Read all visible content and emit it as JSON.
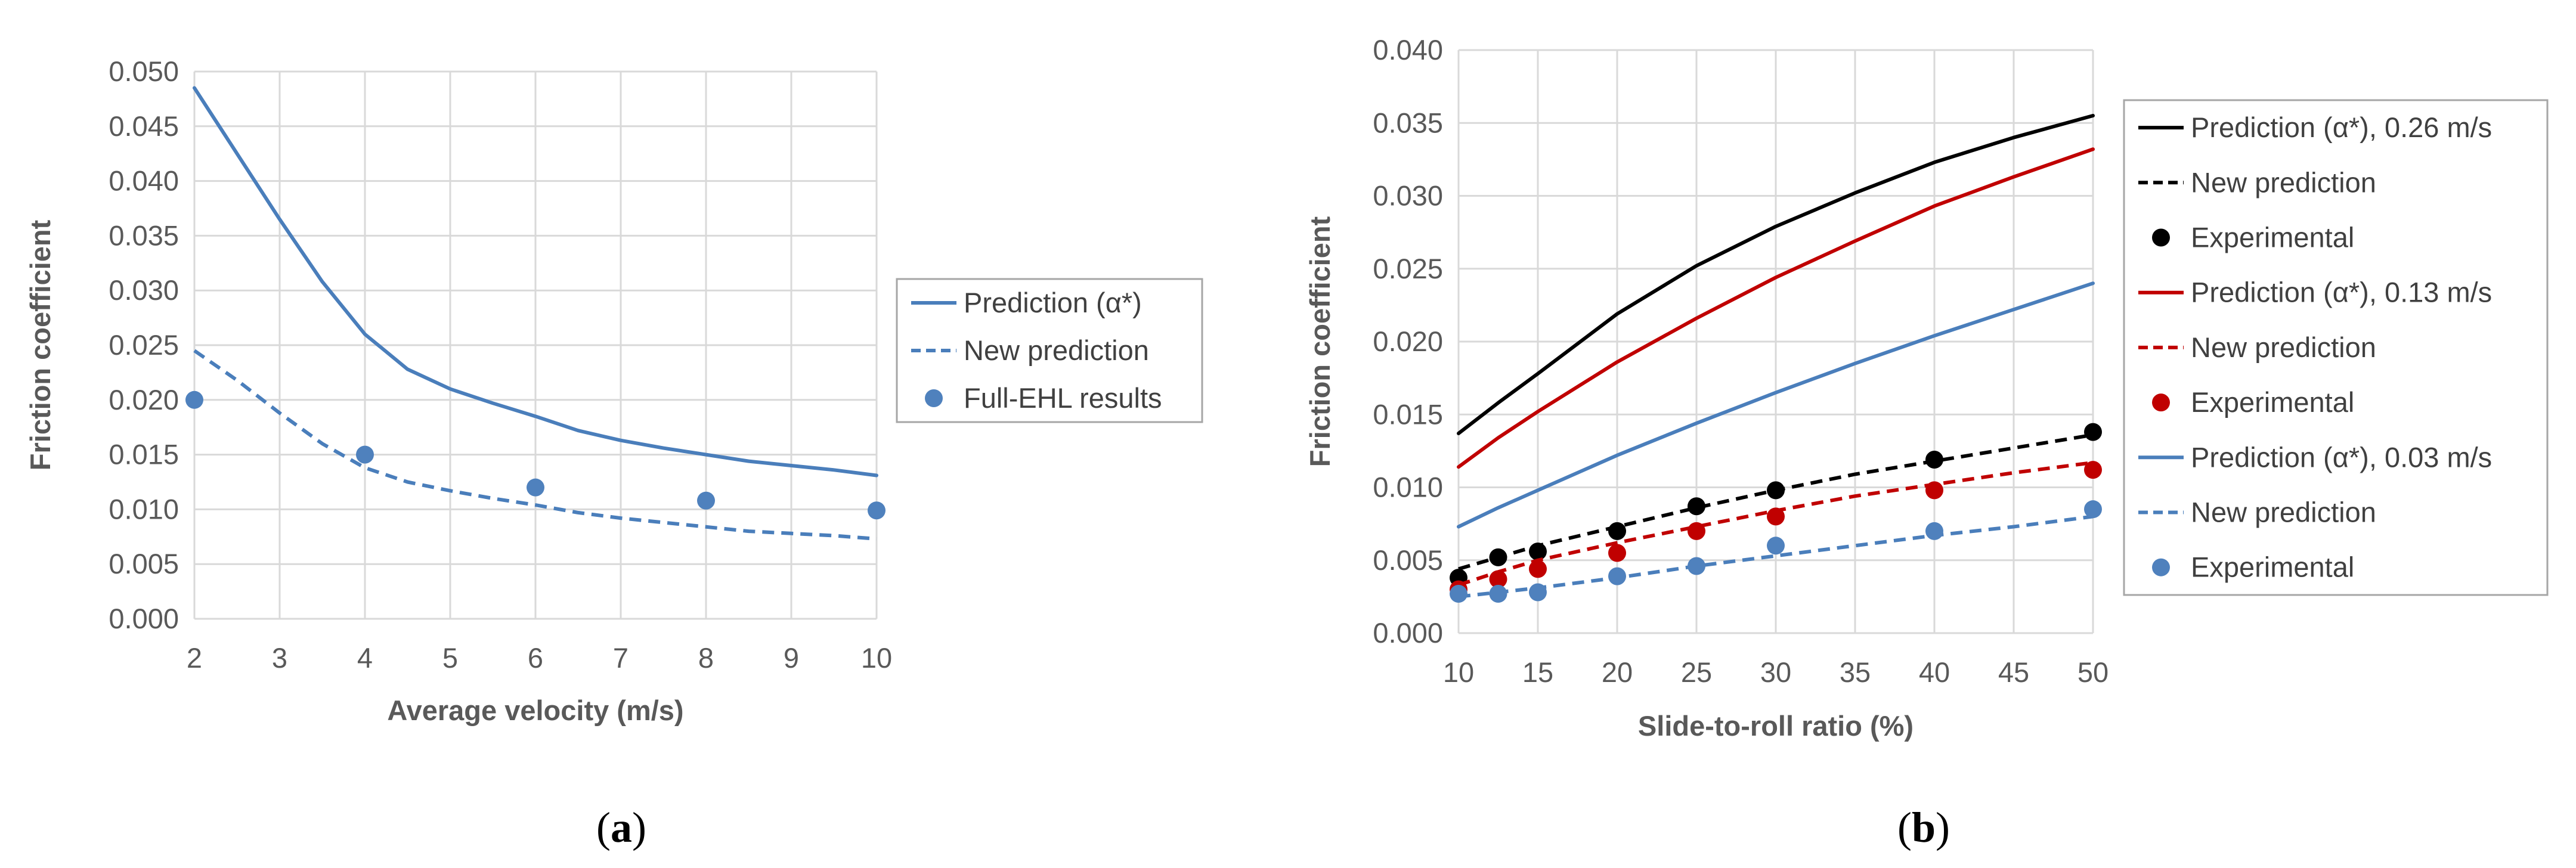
{
  "chart_data": [
    {
      "type": "line",
      "panel": "a",
      "caption": {
        "open": "(",
        "letter": "a",
        "close": ")"
      },
      "xlabel": "Average velocity (m/s)",
      "ylabel": "Friction coefficient",
      "xlim": [
        2,
        10
      ],
      "ylim": [
        0,
        0.05
      ],
      "xticks": [
        2,
        3,
        4,
        5,
        6,
        7,
        8,
        9,
        10
      ],
      "yticks": [
        "0.000",
        "0.005",
        "0.010",
        "0.015",
        "0.020",
        "0.025",
        "0.030",
        "0.035",
        "0.040",
        "0.045",
        "0.050"
      ],
      "grid": true,
      "legend_position": "right",
      "series": [
        {
          "name": "Prediction (α*)",
          "style": "solid",
          "marker": "none",
          "color": "#4a7ebb",
          "x": [
            2,
            2.5,
            3,
            3.5,
            4,
            4.5,
            5,
            5.5,
            6,
            6.5,
            7,
            7.5,
            8,
            8.5,
            9,
            9.5,
            10
          ],
          "y": [
            0.0485,
            0.0425,
            0.0365,
            0.0308,
            0.026,
            0.0228,
            0.021,
            0.0197,
            0.0185,
            0.0172,
            0.0163,
            0.0156,
            0.015,
            0.0144,
            0.014,
            0.0136,
            0.0131
          ]
        },
        {
          "name": "New prediction",
          "style": "dashed",
          "marker": "none",
          "color": "#4a7ebb",
          "x": [
            2,
            2.5,
            3,
            3.5,
            4,
            4.5,
            5,
            5.5,
            6,
            6.5,
            7,
            7.5,
            8,
            8.5,
            9,
            9.5,
            10
          ],
          "y": [
            0.0245,
            0.0218,
            0.0188,
            0.016,
            0.0138,
            0.0125,
            0.0117,
            0.011,
            0.0104,
            0.0097,
            0.0092,
            0.0088,
            0.0084,
            0.008,
            0.0078,
            0.0076,
            0.0073
          ]
        },
        {
          "name": "Full-EHL results",
          "style": "none",
          "marker": "circle",
          "color": "#4f81bd",
          "x": [
            2,
            4,
            6,
            8,
            10
          ],
          "y": [
            0.02,
            0.015,
            0.012,
            0.0108,
            0.0099
          ]
        }
      ]
    },
    {
      "type": "line",
      "panel": "b",
      "caption": {
        "open": "(",
        "letter": "b",
        "close": ")"
      },
      "xlabel": "Slide-to-roll ratio (%)",
      "ylabel": "Friction coefficient",
      "xlim": [
        10,
        50
      ],
      "ylim": [
        0,
        0.04
      ],
      "xticks": [
        10,
        15,
        20,
        25,
        30,
        35,
        40,
        45,
        50
      ],
      "yticks": [
        "0.000",
        "0.005",
        "0.010",
        "0.015",
        "0.020",
        "0.025",
        "0.030",
        "0.035",
        "0.040"
      ],
      "grid": true,
      "legend_position": "right",
      "series": [
        {
          "name": "Prediction (α*), 0.26 m/s",
          "style": "solid",
          "marker": "none",
          "color": "#000000",
          "x": [
            10,
            12.5,
            15,
            20,
            25,
            30,
            35,
            40,
            45,
            50
          ],
          "y": [
            0.0137,
            0.0158,
            0.0178,
            0.0219,
            0.0252,
            0.0279,
            0.0302,
            0.0323,
            0.034,
            0.0355
          ]
        },
        {
          "name": "New prediction",
          "style": "dashed",
          "marker": "none",
          "color": "#000000",
          "x": [
            10,
            12.5,
            15,
            20,
            25,
            30,
            35,
            40,
            45,
            50
          ],
          "y": [
            0.0044,
            0.0052,
            0.006,
            0.0073,
            0.0086,
            0.0098,
            0.0109,
            0.0118,
            0.0127,
            0.0136
          ]
        },
        {
          "name": "Experimental",
          "style": "none",
          "marker": "circle",
          "color": "#000000",
          "x": [
            10,
            12.5,
            15,
            20,
            25,
            30,
            40,
            50
          ],
          "y": [
            0.0038,
            0.0052,
            0.0056,
            0.007,
            0.0087,
            0.0098,
            0.0119,
            0.0138
          ]
        },
        {
          "name": "Prediction (α*), 0.13 m/s",
          "style": "solid",
          "marker": "none",
          "color": "#c00000",
          "x": [
            10,
            12.5,
            15,
            20,
            25,
            30,
            35,
            40,
            45,
            50
          ],
          "y": [
            0.0114,
            0.0134,
            0.0152,
            0.0186,
            0.0216,
            0.0244,
            0.0269,
            0.0293,
            0.0313,
            0.0332
          ]
        },
        {
          "name": "New prediction",
          "style": "dashed",
          "marker": "none",
          "color": "#c00000",
          "x": [
            10,
            12.5,
            15,
            20,
            25,
            30,
            35,
            40,
            45,
            50
          ],
          "y": [
            0.0033,
            0.0042,
            0.005,
            0.0062,
            0.0073,
            0.0084,
            0.0094,
            0.0102,
            0.011,
            0.0117
          ]
        },
        {
          "name": "Experimental",
          "style": "none",
          "marker": "circle",
          "color": "#c00000",
          "x": [
            10,
            12.5,
            15,
            20,
            25,
            30,
            40,
            50
          ],
          "y": [
            0.003,
            0.0037,
            0.0044,
            0.0055,
            0.007,
            0.008,
            0.0098,
            0.0112
          ]
        },
        {
          "name": "Prediction (α*), 0.03 m/s",
          "style": "solid",
          "marker": "none",
          "color": "#4a7ebb",
          "x": [
            10,
            12.5,
            15,
            20,
            25,
            30,
            35,
            40,
            45,
            50
          ],
          "y": [
            0.0073,
            0.0086,
            0.0098,
            0.0122,
            0.0144,
            0.0165,
            0.0185,
            0.0204,
            0.0222,
            0.024
          ]
        },
        {
          "name": "New prediction",
          "style": "dashed",
          "marker": "none",
          "color": "#4a7ebb",
          "x": [
            10,
            12.5,
            15,
            20,
            25,
            30,
            35,
            40,
            45,
            50
          ],
          "y": [
            0.0025,
            0.0028,
            0.0031,
            0.0038,
            0.0046,
            0.0053,
            0.006,
            0.0067,
            0.0073,
            0.008
          ]
        },
        {
          "name": "Experimental",
          "style": "none",
          "marker": "circle",
          "color": "#4f81bd",
          "x": [
            10,
            12.5,
            15,
            20,
            25,
            30,
            40,
            50
          ],
          "y": [
            0.0027,
            0.0027,
            0.0028,
            0.0039,
            0.0046,
            0.006,
            0.007,
            0.0085
          ]
        }
      ]
    }
  ]
}
